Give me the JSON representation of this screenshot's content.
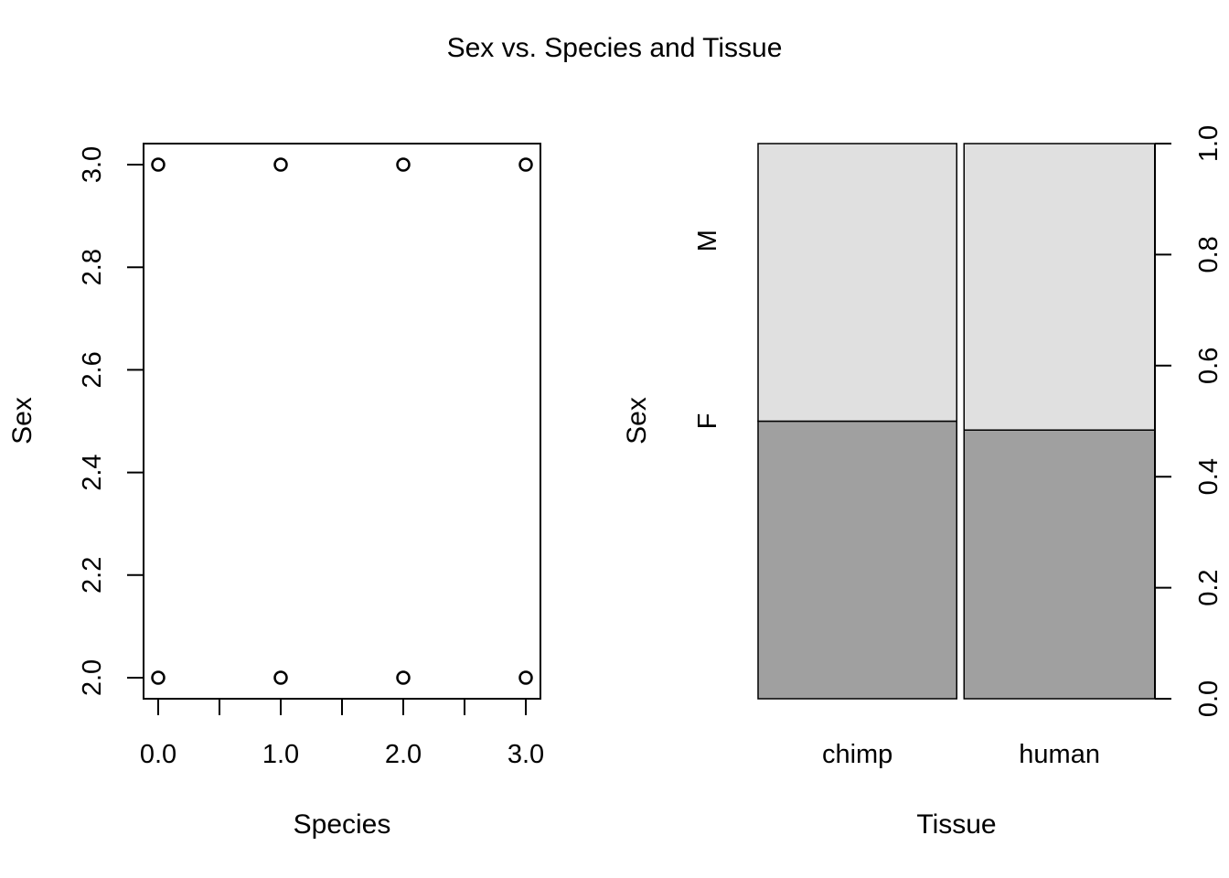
{
  "title": "Sex vs. Species and Tissue",
  "chart_data": [
    {
      "type": "scatter",
      "xlabel": "Species",
      "ylabel": "Sex",
      "xlim": [
        0,
        3
      ],
      "ylim": [
        2.0,
        3.0
      ],
      "x_ticks": [
        0,
        0.5,
        1,
        1.5,
        2,
        2.5,
        3
      ],
      "x_tick_labels": [
        "0.0",
        "1.0",
        "2.0",
        "3.0"
      ],
      "x_tick_label_values": [
        0,
        1,
        2,
        3
      ],
      "y_tick_labels": [
        "2.0",
        "2.2",
        "2.4",
        "2.6",
        "2.8",
        "3.0"
      ],
      "y_tick_values": [
        2.0,
        2.2,
        2.4,
        2.6,
        2.8,
        3.0
      ],
      "points": [
        {
          "x": 0,
          "y": 3.0
        },
        {
          "x": 1,
          "y": 3.0
        },
        {
          "x": 2,
          "y": 3.0
        },
        {
          "x": 3,
          "y": 3.0
        },
        {
          "x": 0,
          "y": 2.0
        },
        {
          "x": 1,
          "y": 2.0
        },
        {
          "x": 2,
          "y": 2.0
        },
        {
          "x": 3,
          "y": 2.0
        }
      ],
      "marker": "open-circle",
      "grid": false
    },
    {
      "type": "bar",
      "subtype": "spineplot",
      "xlabel": "Tissue",
      "ylabel": "Sex",
      "categories": [
        "chimp",
        "human"
      ],
      "category_widths": [
        0.51,
        0.49
      ],
      "series": [
        {
          "name": "F",
          "values": [
            0.5,
            0.484
          ],
          "color": "#a0a0a0"
        },
        {
          "name": "M",
          "values": [
            0.5,
            0.516
          ],
          "color": "#e0e0e0"
        }
      ],
      "left_axis_labels": [
        "F",
        "M"
      ],
      "right_axis_ticks": [
        "0.0",
        "0.2",
        "0.4",
        "0.6",
        "0.8",
        "1.0"
      ],
      "right_axis_values": [
        0,
        0.2,
        0.4,
        0.6,
        0.8,
        1.0
      ],
      "ylim": [
        0,
        1
      ],
      "grid": false
    }
  ]
}
